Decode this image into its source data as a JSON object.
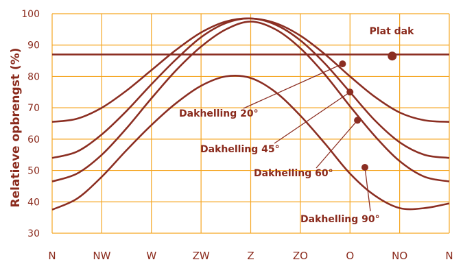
{
  "chart_data": {
    "type": "line",
    "ylabel": "Relatieve opbrengst (%)",
    "xlabel": "",
    "title": "",
    "ylim": [
      30,
      100
    ],
    "y_ticks": [
      30,
      40,
      50,
      60,
      70,
      80,
      90,
      100
    ],
    "x_categories": [
      "N",
      "NW",
      "W",
      "ZW",
      "Z",
      "ZO",
      "O",
      "NO",
      "N"
    ],
    "grid": true,
    "colors": {
      "grid": "#f5a623",
      "line": "#8b2e22",
      "text": "#8a2a1c"
    },
    "series": [
      {
        "name": "Plat dak",
        "x": [
          0,
          8
        ],
        "y": [
          87,
          87
        ]
      },
      {
        "name": "Dakhelling 20°",
        "x": [
          0,
          0.5,
          1,
          1.5,
          2,
          2.5,
          3,
          3.5,
          4,
          4.5,
          5,
          5.5,
          6,
          6.5,
          7,
          7.5,
          8
        ],
        "y": [
          65.5,
          66.5,
          70,
          75.5,
          82,
          88.5,
          94,
          97.5,
          98.5,
          97,
          93,
          87,
          80,
          73.5,
          68.5,
          66,
          65.5
        ]
      },
      {
        "name": "Dakhelling 45°",
        "x": [
          0,
          0.5,
          1,
          1.5,
          2,
          2.5,
          3,
          3.5,
          4,
          4.5,
          5,
          5.5,
          6,
          6.5,
          7,
          7.5,
          8
        ],
        "y": [
          54,
          56,
          61.5,
          69,
          77.5,
          85.5,
          92.5,
          97,
          98.5,
          96.5,
          91.5,
          84,
          75,
          66,
          59,
          55,
          54
        ]
      },
      {
        "name": "Dakhelling 60°",
        "x": [
          0,
          0.5,
          1,
          1.5,
          2,
          2.5,
          3,
          3.5,
          4,
          4.5,
          5,
          5.5,
          6,
          6.5,
          7,
          7.5,
          8
        ],
        "y": [
          46.5,
          49,
          55,
          63.5,
          73,
          82,
          89.5,
          95,
          97.5,
          95,
          89,
          80.5,
          70.5,
          61,
          53,
          48,
          46.5
        ]
      },
      {
        "name": "Dakhelling 90°",
        "x": [
          0,
          0.5,
          1,
          1.5,
          2,
          2.5,
          3,
          3.5,
          4,
          4.5,
          5,
          5.5,
          6,
          6.5,
          7,
          7.5,
          8
        ],
        "y": [
          37.5,
          41,
          48,
          56.5,
          64.5,
          71.5,
          77,
          80,
          79.5,
          75,
          67.5,
          58.5,
          49,
          42,
          38,
          38,
          39.5
        ]
      }
    ],
    "annotations": [
      {
        "label": "Plat dak",
        "x": 6.85,
        "y": 86.5
      },
      {
        "label": "Dakhelling 20°",
        "x": 5.85,
        "y": 84
      },
      {
        "label": "Dakhelling 45°",
        "x": 6.0,
        "y": 75
      },
      {
        "label": "Dakhelling 60°",
        "x": 6.15,
        "y": 66
      },
      {
        "label": "Dakhelling 90°",
        "x": 6.3,
        "y": 51
      }
    ]
  }
}
